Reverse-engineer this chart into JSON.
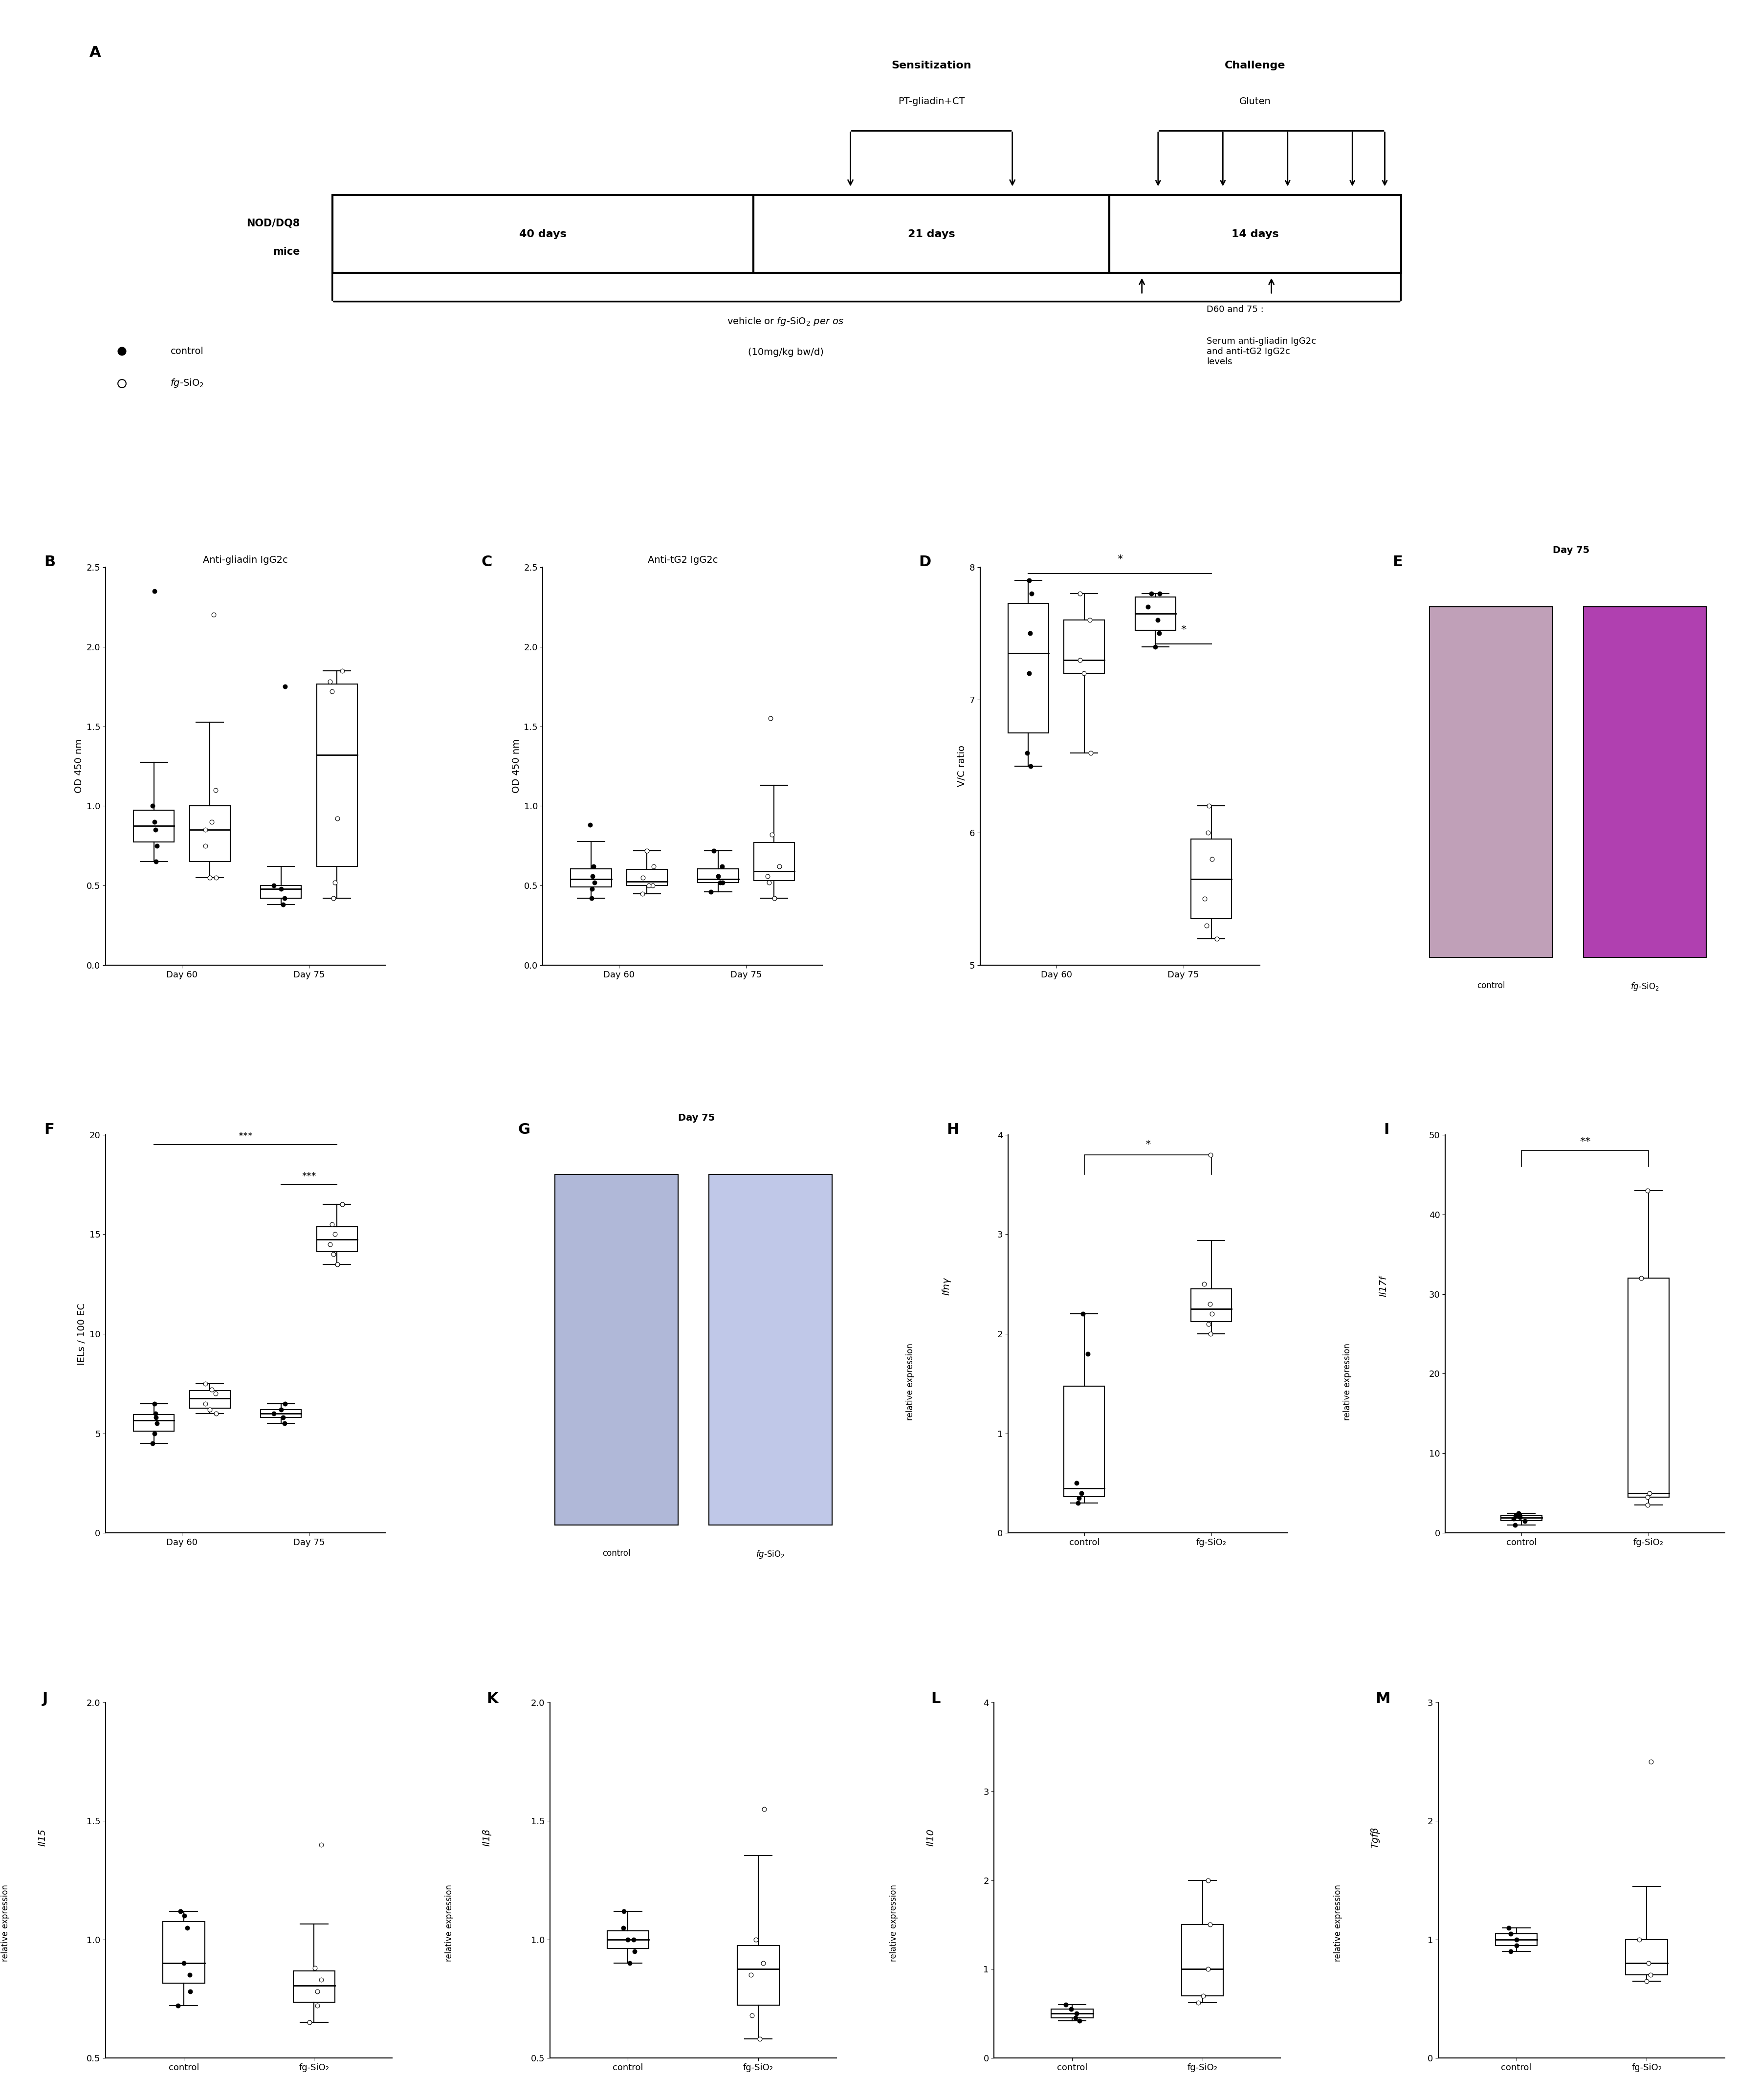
{
  "panel_B": {
    "title": "Anti-gliadin IgG2c",
    "ylabel": "OD 450 nm",
    "xlabel_groups": [
      "Day 60",
      "Day 75"
    ],
    "ylim": [
      0.0,
      2.5
    ],
    "yticks": [
      0.0,
      0.5,
      1.0,
      1.5,
      2.0,
      2.5
    ],
    "control_d60": [
      2.35,
      0.75,
      0.85,
      0.9,
      1.0,
      0.65
    ],
    "fgsio2_d60": [
      0.75,
      1.1,
      0.85,
      0.55,
      0.55,
      0.9,
      2.2
    ],
    "control_d75": [
      1.75,
      0.5,
      0.38,
      0.42,
      0.48
    ],
    "fgsio2_d75": [
      1.85,
      1.72,
      1.78,
      0.52,
      0.42,
      0.92
    ]
  },
  "panel_C": {
    "title": "Anti-tG2 IgG2c",
    "ylabel": "OD 450 nm",
    "xlabel_groups": [
      "Day 60",
      "Day 75"
    ],
    "ylim": [
      0.0,
      2.5
    ],
    "yticks": [
      0.0,
      0.5,
      1.0,
      1.5,
      2.0,
      2.5
    ],
    "control_d60": [
      0.48,
      0.52,
      0.56,
      0.42,
      0.88,
      0.62
    ],
    "fgsio2_d60": [
      0.55,
      0.5,
      0.45,
      0.62,
      0.72,
      0.5
    ],
    "control_d75": [
      0.52,
      0.46,
      0.52,
      0.62,
      0.56,
      0.72
    ],
    "fgsio2_d75": [
      0.62,
      0.52,
      0.56,
      0.82,
      1.55,
      0.42
    ]
  },
  "panel_D": {
    "ylabel": "V/C ratio",
    "xlabel_groups": [
      "Day 60",
      "Day 75"
    ],
    "ylim": [
      5,
      8
    ],
    "yticks": [
      5,
      6,
      7,
      8
    ],
    "control_d60": [
      7.9,
      7.8,
      7.5,
      7.2,
      6.6,
      6.5
    ],
    "fgsio2_d60": [
      7.8,
      7.6,
      7.3,
      6.6,
      7.2
    ],
    "control_d75": [
      7.8,
      7.7,
      7.6,
      7.5,
      7.4,
      7.8
    ],
    "fgsio2_d75": [
      5.2,
      5.3,
      5.5,
      6.2,
      6.0,
      5.8
    ]
  },
  "panel_F": {
    "ylabel": "IELs / 100 EC",
    "xlabel_groups": [
      "Day 60",
      "Day 75"
    ],
    "ylim": [
      0,
      20
    ],
    "yticks": [
      0,
      5,
      10,
      15,
      20
    ],
    "control_d60": [
      6.5,
      5.5,
      6.0,
      5.0,
      4.5,
      5.8
    ],
    "fgsio2_d60": [
      7.5,
      7.0,
      6.5,
      6.0,
      6.2,
      7.2
    ],
    "control_d75": [
      6.5,
      6.0,
      5.8,
      5.5,
      6.2
    ],
    "fgsio2_d75": [
      16.5,
      15.5,
      14.5,
      15.0,
      14.0,
      13.5
    ]
  },
  "panel_H": {
    "ylabel_italic": "Ifnγ",
    "ylabel_normal": "relative expression",
    "xlabel_groups": [
      "control",
      "fg-SiO₂"
    ],
    "ylim": [
      0,
      4
    ],
    "yticks": [
      0,
      1,
      2,
      3,
      4
    ],
    "control": [
      2.2,
      1.8,
      0.5,
      0.4,
      0.35,
      0.3
    ],
    "fgsio2": [
      3.8,
      2.5,
      2.2,
      2.0,
      2.3,
      2.1
    ],
    "sig": "*"
  },
  "panel_I": {
    "ylabel_italic": "Il17f",
    "ylabel_normal": "relative expression",
    "xlabel_groups": [
      "control",
      "fg-SiO₂"
    ],
    "ylim": [
      0,
      50
    ],
    "yticks": [
      0,
      10,
      20,
      30,
      40,
      50
    ],
    "control": [
      2.0,
      1.5,
      1.8,
      2.5,
      2.2,
      1.0
    ],
    "fgsio2": [
      43.0,
      32.0,
      5.0,
      4.5,
      3.5
    ],
    "sig": "**"
  },
  "panel_J": {
    "ylabel_italic": "Il15",
    "ylabel_normal": "relative expression",
    "xlabel_groups": [
      "control",
      "fg-SiO₂"
    ],
    "ylim": [
      0.5,
      2.0
    ],
    "yticks": [
      0.5,
      1.0,
      1.5,
      2.0
    ],
    "control": [
      1.1,
      1.05,
      1.12,
      0.9,
      0.85,
      0.78,
      0.72
    ],
    "fgsio2": [
      1.4,
      0.88,
      0.83,
      0.78,
      0.72,
      0.65
    ],
    "sig": null
  },
  "panel_K": {
    "ylabel_italic": "Il1β",
    "ylabel_normal": "relative expression",
    "xlabel_groups": [
      "control",
      "fg-SiO₂"
    ],
    "ylim": [
      0.5,
      2.0
    ],
    "yticks": [
      0.5,
      1.0,
      1.5,
      2.0
    ],
    "control": [
      1.12,
      1.0,
      1.05,
      0.95,
      1.0,
      0.9
    ],
    "fgsio2": [
      1.55,
      1.0,
      0.9,
      0.85,
      0.68,
      0.58
    ],
    "sig": null
  },
  "panel_L": {
    "ylabel_italic": "Il10",
    "ylabel_normal": "relative expression",
    "xlabel_groups": [
      "control",
      "fg-SiO₂"
    ],
    "ylim": [
      0,
      4
    ],
    "yticks": [
      0,
      1,
      2,
      3,
      4
    ],
    "control": [
      0.6,
      0.5,
      0.55,
      0.45,
      0.42
    ],
    "fgsio2": [
      2.0,
      1.5,
      1.0,
      0.7,
      0.62
    ],
    "sig": null
  },
  "panel_M": {
    "ylabel_italic": "Tgfβ",
    "ylabel_normal": "relative expression",
    "xlabel_groups": [
      "control",
      "fg-SiO₂"
    ],
    "ylim": [
      0,
      3
    ],
    "yticks": [
      0,
      1,
      2,
      3
    ],
    "control": [
      1.1,
      1.0,
      0.95,
      0.9,
      1.05
    ],
    "fgsio2": [
      2.5,
      1.0,
      0.8,
      0.7,
      0.65
    ],
    "sig": null
  }
}
